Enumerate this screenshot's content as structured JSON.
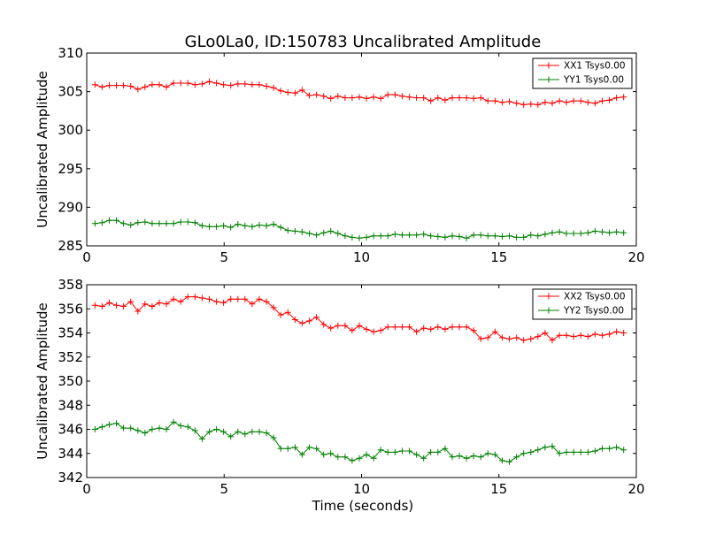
{
  "chart_data": [
    {
      "type": "line",
      "title": "GLo0La0, ID:150783 Uncalibrated Amplitude",
      "xlabel": "",
      "ylabel": "Uncalibrated Amplitude",
      "xlim": [
        0,
        20
      ],
      "ylim": [
        285,
        310
      ],
      "xticks": [
        0,
        5,
        10,
        15,
        20
      ],
      "yticks": [
        285,
        290,
        295,
        300,
        305,
        310
      ],
      "grid": false,
      "legend_position": "top-right",
      "series": [
        {
          "name": "XX1 Tsys0.00",
          "color": "#ff0000",
          "marker": "plus",
          "x": [
            0.3,
            0.56,
            0.82,
            1.08,
            1.34,
            1.6,
            1.86,
            2.12,
            2.38,
            2.64,
            2.9,
            3.16,
            3.42,
            3.68,
            3.94,
            4.2,
            4.46,
            4.72,
            4.98,
            5.24,
            5.5,
            5.76,
            6.02,
            6.28,
            6.54,
            6.8,
            7.06,
            7.32,
            7.58,
            7.84,
            8.1,
            8.36,
            8.62,
            8.88,
            9.14,
            9.4,
            9.66,
            9.92,
            10.18,
            10.44,
            10.7,
            10.96,
            11.22,
            11.48,
            11.74,
            12.0,
            12.26,
            12.52,
            12.78,
            13.04,
            13.3,
            13.56,
            13.82,
            14.08,
            14.34,
            14.6,
            14.86,
            15.12,
            15.38,
            15.64,
            15.9,
            16.16,
            16.42,
            16.68,
            16.94,
            17.2,
            17.46,
            17.72,
            17.98,
            18.24,
            18.5,
            18.76,
            19.02,
            19.28,
            19.54
          ],
          "values": [
            305.9,
            305.6,
            305.8,
            305.8,
            305.8,
            305.7,
            305.3,
            305.6,
            305.9,
            305.9,
            305.6,
            306.1,
            306.1,
            306.1,
            305.9,
            306.0,
            306.3,
            306.1,
            305.9,
            305.8,
            306.0,
            306.0,
            305.9,
            305.9,
            305.7,
            305.5,
            305.1,
            304.9,
            304.8,
            305.2,
            304.5,
            304.6,
            304.4,
            304.1,
            304.4,
            304.2,
            304.2,
            304.3,
            304.1,
            304.3,
            304.1,
            304.6,
            304.6,
            304.4,
            304.3,
            304.2,
            304.2,
            303.8,
            304.2,
            303.9,
            304.2,
            304.2,
            304.2,
            304.1,
            304.2,
            303.8,
            303.8,
            303.6,
            303.7,
            303.5,
            303.3,
            303.4,
            303.3,
            303.6,
            303.5,
            303.8,
            303.6,
            303.8,
            303.8,
            303.6,
            303.5,
            303.8,
            303.9,
            304.2,
            304.3
          ]
        },
        {
          "name": "YY1 Tsys0.00",
          "color": "#008000",
          "marker": "plus",
          "x": [
            0.3,
            0.56,
            0.82,
            1.08,
            1.34,
            1.6,
            1.86,
            2.12,
            2.38,
            2.64,
            2.9,
            3.16,
            3.42,
            3.68,
            3.94,
            4.2,
            4.46,
            4.72,
            4.98,
            5.24,
            5.5,
            5.76,
            6.02,
            6.28,
            6.54,
            6.8,
            7.06,
            7.32,
            7.58,
            7.84,
            8.1,
            8.36,
            8.62,
            8.88,
            9.14,
            9.4,
            9.66,
            9.92,
            10.18,
            10.44,
            10.7,
            10.96,
            11.22,
            11.48,
            11.74,
            12.0,
            12.26,
            12.52,
            12.78,
            13.04,
            13.3,
            13.56,
            13.82,
            14.08,
            14.34,
            14.6,
            14.86,
            15.12,
            15.38,
            15.64,
            15.9,
            16.16,
            16.42,
            16.68,
            16.94,
            17.2,
            17.46,
            17.72,
            17.98,
            18.24,
            18.5,
            18.76,
            19.02,
            19.28,
            19.54
          ],
          "values": [
            287.9,
            288.0,
            288.3,
            288.3,
            287.9,
            287.7,
            288.0,
            288.1,
            287.9,
            287.9,
            287.9,
            287.9,
            288.1,
            288.1,
            288.0,
            287.6,
            287.5,
            287.5,
            287.6,
            287.4,
            287.8,
            287.6,
            287.5,
            287.7,
            287.6,
            287.8,
            287.4,
            287.0,
            286.9,
            286.8,
            286.6,
            286.4,
            286.7,
            286.9,
            286.6,
            286.3,
            286.1,
            286.0,
            286.1,
            286.3,
            286.3,
            286.3,
            286.5,
            286.4,
            286.4,
            286.4,
            286.5,
            286.3,
            286.2,
            286.1,
            286.3,
            286.2,
            286.0,
            286.4,
            286.4,
            286.3,
            286.3,
            286.2,
            286.3,
            286.1,
            286.1,
            286.4,
            286.3,
            286.5,
            286.7,
            286.8,
            286.6,
            286.6,
            286.6,
            286.7,
            286.9,
            286.8,
            286.7,
            286.8,
            286.7
          ]
        }
      ]
    },
    {
      "type": "line",
      "title": "",
      "xlabel": "Time (seconds)",
      "ylabel": "Uncalibrated Amplitude",
      "xlim": [
        0,
        20
      ],
      "ylim": [
        342,
        358
      ],
      "xticks": [
        0,
        5,
        10,
        15,
        20
      ],
      "yticks": [
        342,
        344,
        346,
        348,
        350,
        352,
        354,
        356,
        358
      ],
      "grid": false,
      "legend_position": "top-right",
      "series": [
        {
          "name": "XX2 Tsys0.00",
          "color": "#ff0000",
          "marker": "plus",
          "x": [
            0.3,
            0.56,
            0.82,
            1.08,
            1.34,
            1.6,
            1.86,
            2.12,
            2.38,
            2.64,
            2.9,
            3.16,
            3.42,
            3.68,
            3.94,
            4.2,
            4.46,
            4.72,
            4.98,
            5.24,
            5.5,
            5.76,
            6.02,
            6.28,
            6.54,
            6.8,
            7.06,
            7.32,
            7.58,
            7.84,
            8.1,
            8.36,
            8.62,
            8.88,
            9.14,
            9.4,
            9.66,
            9.92,
            10.18,
            10.44,
            10.7,
            10.96,
            11.22,
            11.48,
            11.74,
            12.0,
            12.26,
            12.52,
            12.78,
            13.04,
            13.3,
            13.56,
            13.82,
            14.08,
            14.34,
            14.6,
            14.86,
            15.12,
            15.38,
            15.64,
            15.9,
            16.16,
            16.42,
            16.68,
            16.94,
            17.2,
            17.46,
            17.72,
            17.98,
            18.24,
            18.5,
            18.76,
            19.02,
            19.28,
            19.54
          ],
          "values": [
            356.3,
            356.2,
            356.5,
            356.3,
            356.2,
            356.6,
            355.8,
            356.4,
            356.2,
            356.5,
            356.4,
            356.8,
            356.6,
            357.0,
            357.0,
            356.9,
            356.8,
            356.6,
            356.5,
            356.8,
            356.8,
            356.8,
            356.4,
            356.8,
            356.6,
            356.1,
            355.5,
            355.7,
            355.1,
            354.8,
            355.0,
            355.3,
            354.7,
            354.4,
            354.6,
            354.6,
            354.2,
            354.6,
            354.3,
            354.1,
            354.2,
            354.5,
            354.5,
            354.5,
            354.5,
            354.1,
            354.4,
            354.3,
            354.5,
            354.3,
            354.5,
            354.5,
            354.5,
            354.2,
            353.5,
            353.6,
            354.1,
            353.6,
            353.5,
            353.6,
            353.4,
            353.5,
            353.7,
            354.0,
            353.4,
            353.8,
            353.8,
            353.7,
            353.8,
            353.7,
            353.9,
            353.8,
            353.9,
            354.1,
            354.0
          ]
        },
        {
          "name": "YY2 Tsys0.00",
          "color": "#008000",
          "marker": "plus",
          "x": [
            0.3,
            0.56,
            0.82,
            1.08,
            1.34,
            1.6,
            1.86,
            2.12,
            2.38,
            2.64,
            2.9,
            3.16,
            3.42,
            3.68,
            3.94,
            4.2,
            4.46,
            4.72,
            4.98,
            5.24,
            5.5,
            5.76,
            6.02,
            6.28,
            6.54,
            6.8,
            7.06,
            7.32,
            7.58,
            7.84,
            8.1,
            8.36,
            8.62,
            8.88,
            9.14,
            9.4,
            9.66,
            9.92,
            10.18,
            10.44,
            10.7,
            10.96,
            11.22,
            11.48,
            11.74,
            12.0,
            12.26,
            12.52,
            12.78,
            13.04,
            13.3,
            13.56,
            13.82,
            14.08,
            14.34,
            14.6,
            14.86,
            15.12,
            15.38,
            15.64,
            15.9,
            16.16,
            16.42,
            16.68,
            16.94,
            17.2,
            17.46,
            17.72,
            17.98,
            18.24,
            18.5,
            18.76,
            19.02,
            19.28,
            19.54
          ],
          "values": [
            346.0,
            346.2,
            346.4,
            346.5,
            346.1,
            346.1,
            345.9,
            345.7,
            346.0,
            346.1,
            346.0,
            346.6,
            346.3,
            346.2,
            345.9,
            345.2,
            345.8,
            346.0,
            345.8,
            345.4,
            345.8,
            345.6,
            345.8,
            345.8,
            345.7,
            345.3,
            344.4,
            344.4,
            344.5,
            343.9,
            344.5,
            344.4,
            343.9,
            344.0,
            343.7,
            343.7,
            343.4,
            343.6,
            343.9,
            343.6,
            344.3,
            344.1,
            344.1,
            344.2,
            344.2,
            343.9,
            343.6,
            344.1,
            344.1,
            344.4,
            343.7,
            343.8,
            343.6,
            343.8,
            343.7,
            344.0,
            343.9,
            343.4,
            343.3,
            343.7,
            344.0,
            344.1,
            344.3,
            344.5,
            344.6,
            344.0,
            344.1,
            344.1,
            344.1,
            344.1,
            344.2,
            344.4,
            344.4,
            344.5,
            344.3
          ]
        }
      ]
    }
  ]
}
